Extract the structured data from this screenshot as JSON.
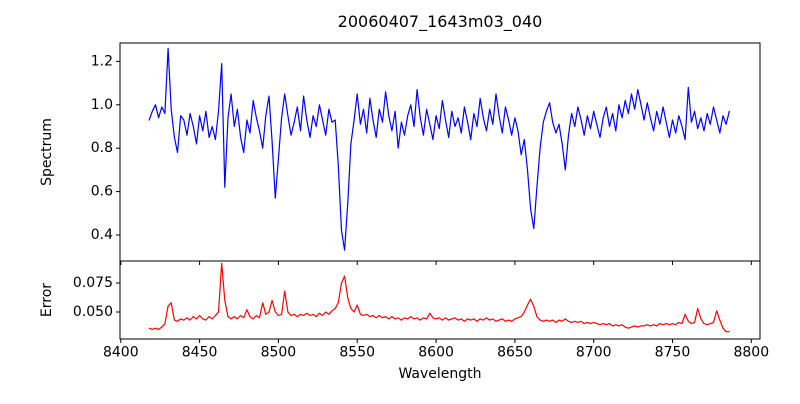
{
  "figure": {
    "background": "#ffffff",
    "spine_color": "#000000",
    "text_color": "#000000"
  },
  "chart_data": [
    {
      "type": "line",
      "title": "20060407_1643m03_040",
      "xlabel": "",
      "ylabel": "Spectrum",
      "grid": false,
      "legend": "none",
      "xlim": [
        8399.5,
        8805.5
      ],
      "ylim": [
        0.28,
        1.285
      ],
      "xticks": [
        8400,
        8450,
        8500,
        8550,
        8600,
        8650,
        8700,
        8750,
        8800
      ],
      "xtick_labels": [],
      "yticks": [
        0.4,
        0.6,
        0.8,
        1.0,
        1.2
      ],
      "ytick_labels": [
        "0.4",
        "0.6",
        "0.8",
        "1.0",
        "1.2"
      ],
      "series": [
        {
          "name": "spectrum",
          "color": "#0000ff",
          "x_start": 8418,
          "x_step": 2,
          "values": [
            0.93,
            0.97,
            1.0,
            0.94,
            0.99,
            0.96,
            1.26,
            0.98,
            0.85,
            0.78,
            0.95,
            0.93,
            0.86,
            0.96,
            0.9,
            0.82,
            0.95,
            0.88,
            0.97,
            0.85,
            0.9,
            0.84,
            0.97,
            1.19,
            0.62,
            0.94,
            1.05,
            0.9,
            0.98,
            0.85,
            0.78,
            0.93,
            0.87,
            1.02,
            0.94,
            0.88,
            0.8,
            0.95,
            1.04,
            0.83,
            0.57,
            0.75,
            0.94,
            1.05,
            0.95,
            0.86,
            0.92,
            0.99,
            0.88,
            1.04,
            0.93,
            0.85,
            0.95,
            0.9,
            1.0,
            0.93,
            0.86,
            0.98,
            0.92,
            0.93,
            0.72,
            0.42,
            0.33,
            0.55,
            0.82,
            0.93,
            1.05,
            0.91,
            0.98,
            0.87,
            1.03,
            0.93,
            0.85,
            0.98,
            0.92,
            1.06,
            0.95,
            0.88,
            0.97,
            0.8,
            0.92,
            0.86,
            0.95,
            1.0,
            0.9,
            1.07,
            0.94,
            0.86,
            0.98,
            0.91,
            0.84,
            0.95,
            0.89,
            1.02,
            0.93,
            0.85,
            0.97,
            0.9,
            0.94,
            0.87,
            0.99,
            0.92,
            0.84,
            0.96,
            0.9,
            1.03,
            0.94,
            0.88,
            0.98,
            0.91,
            1.05,
            0.95,
            0.87,
            0.99,
            0.93,
            0.86,
            0.94,
            0.88,
            0.77,
            0.84,
            0.7,
            0.52,
            0.43,
            0.62,
            0.8,
            0.92,
            0.97,
            1.01,
            0.92,
            0.87,
            0.91,
            0.82,
            0.7,
            0.86,
            0.96,
            0.9,
            0.99,
            0.93,
            0.86,
            0.95,
            0.89,
            0.97,
            0.91,
            0.85,
            0.94,
            0.99,
            0.9,
            0.96,
            0.88,
            1.0,
            0.94,
            1.02,
            0.96,
            1.05,
            0.98,
            1.07,
            1.0,
            0.93,
            1.01,
            0.94,
            0.88,
            0.97,
            0.91,
            0.99,
            0.92,
            0.85,
            0.93,
            0.87,
            0.95,
            0.9,
            0.84,
            1.08,
            0.92,
            0.97,
            0.89,
            0.94,
            0.88,
            0.96,
            0.91,
            0.99,
            0.93,
            0.87,
            0.95,
            0.91,
            0.97
          ]
        }
      ]
    },
    {
      "type": "line",
      "title": "",
      "xlabel": "Wavelength",
      "ylabel": "Error",
      "grid": false,
      "legend": "none",
      "xlim": [
        8399.5,
        8805.5
      ],
      "ylim": [
        0.0267,
        0.094
      ],
      "xticks": [
        8400,
        8450,
        8500,
        8550,
        8600,
        8650,
        8700,
        8750,
        8800
      ],
      "xtick_labels": [
        "8400",
        "8450",
        "8500",
        "8550",
        "8600",
        "8650",
        "8700",
        "8750",
        "8800"
      ],
      "yticks": [
        0.05,
        0.075
      ],
      "ytick_labels": [
        "0.050",
        "0.075"
      ],
      "series": [
        {
          "name": "error",
          "color": "#ff0000",
          "x_start": 8418,
          "x_step": 2,
          "values": [
            0.036,
            0.035,
            0.036,
            0.035,
            0.037,
            0.04,
            0.055,
            0.058,
            0.043,
            0.042,
            0.044,
            0.043,
            0.045,
            0.043,
            0.046,
            0.044,
            0.047,
            0.044,
            0.043,
            0.046,
            0.044,
            0.047,
            0.05,
            0.092,
            0.06,
            0.046,
            0.044,
            0.046,
            0.044,
            0.047,
            0.045,
            0.052,
            0.046,
            0.044,
            0.047,
            0.045,
            0.058,
            0.048,
            0.05,
            0.06,
            0.05,
            0.047,
            0.048,
            0.068,
            0.05,
            0.047,
            0.048,
            0.046,
            0.048,
            0.047,
            0.049,
            0.047,
            0.048,
            0.046,
            0.049,
            0.047,
            0.05,
            0.048,
            0.051,
            0.053,
            0.058,
            0.075,
            0.081,
            0.062,
            0.053,
            0.05,
            0.056,
            0.048,
            0.047,
            0.048,
            0.046,
            0.047,
            0.045,
            0.047,
            0.045,
            0.046,
            0.044,
            0.046,
            0.044,
            0.045,
            0.043,
            0.045,
            0.044,
            0.046,
            0.044,
            0.045,
            0.043,
            0.045,
            0.044,
            0.049,
            0.045,
            0.044,
            0.045,
            0.043,
            0.045,
            0.043,
            0.044,
            0.045,
            0.043,
            0.044,
            0.042,
            0.044,
            0.043,
            0.044,
            0.042,
            0.044,
            0.043,
            0.045,
            0.043,
            0.044,
            0.042,
            0.043,
            0.044,
            0.042,
            0.043,
            0.042,
            0.044,
            0.045,
            0.046,
            0.05,
            0.056,
            0.061,
            0.055,
            0.046,
            0.043,
            0.042,
            0.043,
            0.042,
            0.043,
            0.041,
            0.043,
            0.042,
            0.044,
            0.042,
            0.041,
            0.042,
            0.041,
            0.042,
            0.04,
            0.041,
            0.04,
            0.041,
            0.04,
            0.039,
            0.04,
            0.039,
            0.04,
            0.038,
            0.039,
            0.038,
            0.039,
            0.037,
            0.036,
            0.037,
            0.038,
            0.037,
            0.038,
            0.038,
            0.039,
            0.038,
            0.039,
            0.038,
            0.04,
            0.039,
            0.04,
            0.039,
            0.04,
            0.039,
            0.041,
            0.04,
            0.048,
            0.042,
            0.04,
            0.041,
            0.053,
            0.044,
            0.04,
            0.039,
            0.04,
            0.041,
            0.051,
            0.043,
            0.036,
            0.033,
            0.033
          ]
        }
      ]
    }
  ]
}
